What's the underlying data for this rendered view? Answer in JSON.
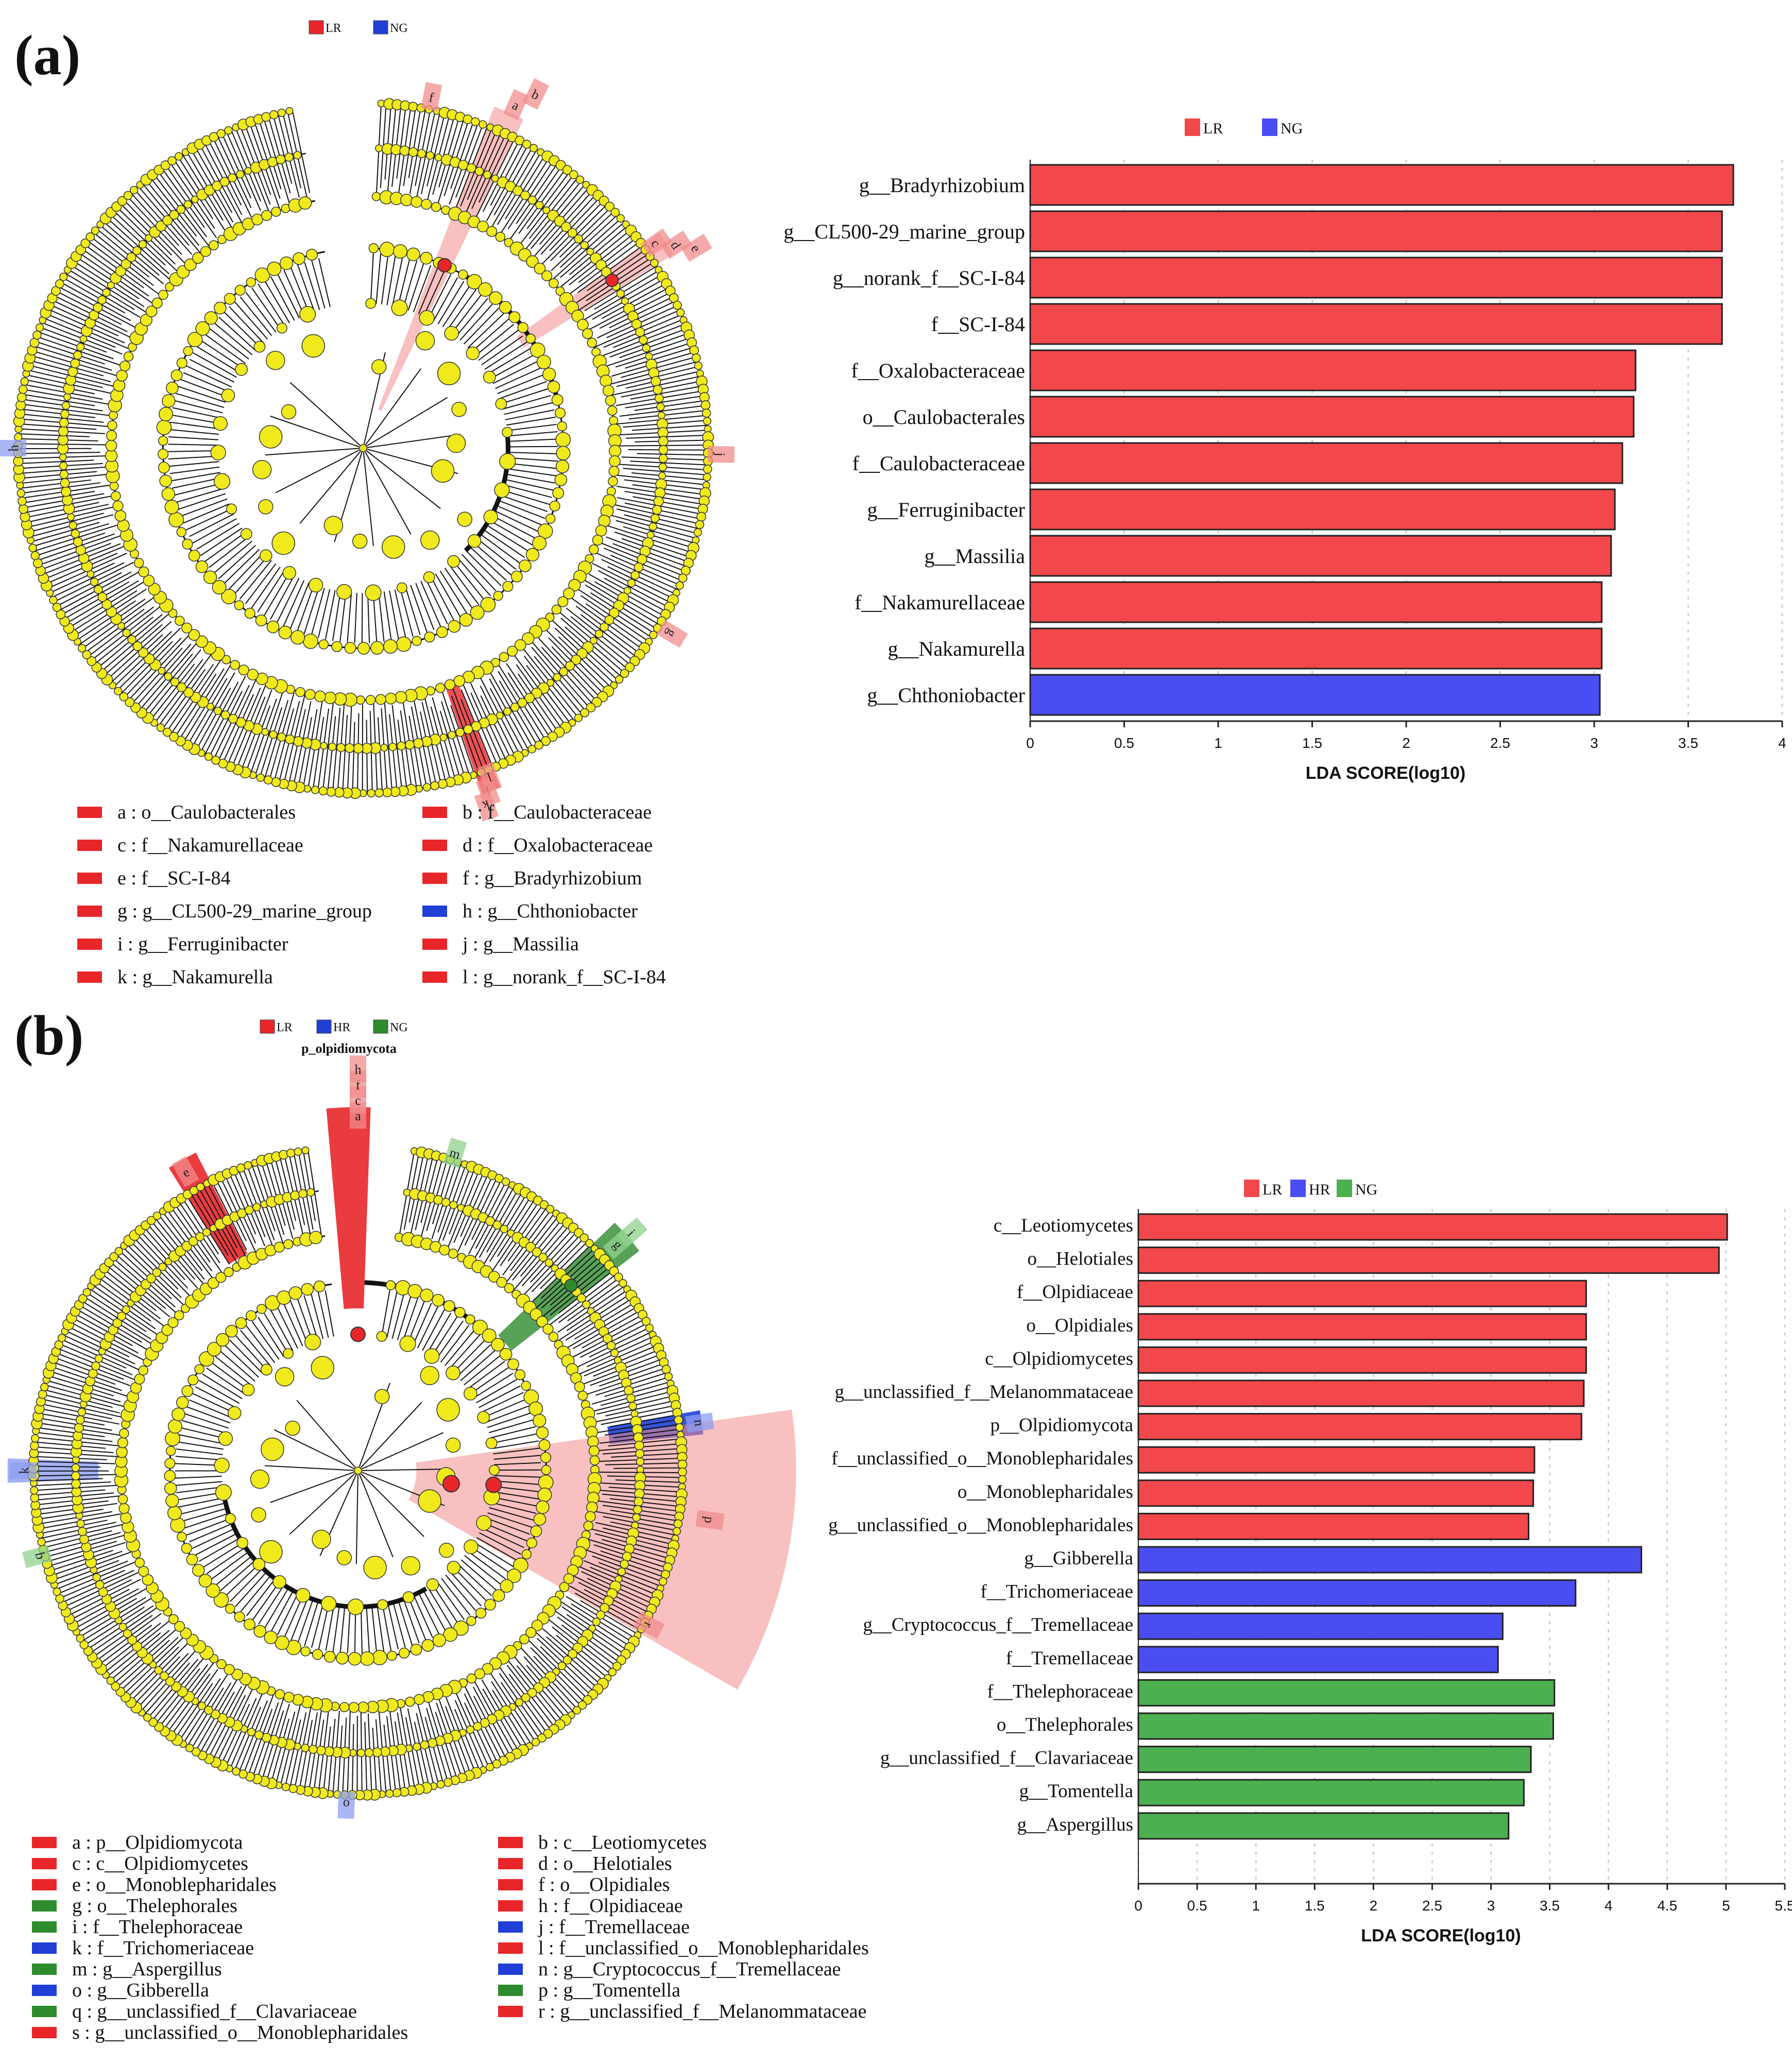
{
  "panel_a": {
    "label": "(a)",
    "cladogram_legend_header": [
      {
        "text": "LR",
        "color": "#e8262a"
      },
      {
        "text": "NG",
        "color": "#1f3fd6"
      }
    ],
    "cladogram_side_labels": [
      "a",
      "b",
      "c",
      "d",
      "e",
      "f",
      "g",
      "h",
      "i",
      "j",
      "k",
      "l"
    ],
    "clade_legend": [
      {
        "text": "a : o__Caulobacterales",
        "color": "#e8262a"
      },
      {
        "text": "b : f__Caulobacteraceae",
        "color": "#e8262a"
      },
      {
        "text": "c : f__Nakamurellaceae",
        "color": "#e8262a"
      },
      {
        "text": "d : f__Oxalobacteraceae",
        "color": "#e8262a"
      },
      {
        "text": "e : f__SC-I-84",
        "color": "#e8262a"
      },
      {
        "text": "f : g__Bradyrhizobium",
        "color": "#e8262a"
      },
      {
        "text": "g : g__CL500-29_marine_group",
        "color": "#e8262a"
      },
      {
        "text": "h : g__Chthoniobacter",
        "color": "#1f3fd6"
      },
      {
        "text": "i : g__Ferruginibacter",
        "color": "#e8262a"
      },
      {
        "text": "j : g__Massilia",
        "color": "#e8262a"
      },
      {
        "text": "k : g__Nakamurella",
        "color": "#e8262a"
      },
      {
        "text": "l : g__norank_f__SC-I-84",
        "color": "#e8262a"
      }
    ]
  },
  "panel_b": {
    "label": "(b)",
    "cladogram_legend_header": [
      {
        "text": "LR",
        "color": "#e8262a"
      },
      {
        "text": "HR",
        "color": "#1f3fd6"
      },
      {
        "text": "NG",
        "color": "#2e8b2e"
      }
    ],
    "cladogram_top_label": "p_olpidiomycota",
    "cladogram_side_labels": [
      "a",
      "b",
      "c",
      "d",
      "e",
      "f",
      "g",
      "h",
      "i",
      "j",
      "k",
      "l",
      "m",
      "n",
      "o",
      "p",
      "q",
      "r",
      "s"
    ],
    "clade_legend": [
      {
        "text": "a : p__Olpidiomycota",
        "color": "#e8262a"
      },
      {
        "text": "b : c__Leotiomycetes",
        "color": "#e8262a"
      },
      {
        "text": "c : c__Olpidiomycetes",
        "color": "#e8262a"
      },
      {
        "text": "d : o__Helotiales",
        "color": "#e8262a"
      },
      {
        "text": "e : o__Monoblepharidales",
        "color": "#e8262a"
      },
      {
        "text": "f : o__Olpidiales",
        "color": "#e8262a"
      },
      {
        "text": "g : o__Thelephorales",
        "color": "#2e8b2e"
      },
      {
        "text": "h : f__Olpidiaceae",
        "color": "#e8262a"
      },
      {
        "text": "i : f__Thelephoraceae",
        "color": "#2e8b2e"
      },
      {
        "text": "j : f__Tremellaceae",
        "color": "#1f3fd6"
      },
      {
        "text": "k : f__Trichomeriaceae",
        "color": "#1f3fd6"
      },
      {
        "text": "l : f__unclassified_o__Monoblepharidales",
        "color": "#e8262a"
      },
      {
        "text": "m : g__Aspergillus",
        "color": "#2e8b2e"
      },
      {
        "text": "n : g__Cryptococcus_f__Tremellaceae",
        "color": "#1f3fd6"
      },
      {
        "text": "o : g__Gibberella",
        "color": "#1f3fd6"
      },
      {
        "text": "p : g__Tomentella",
        "color": "#2e8b2e"
      },
      {
        "text": "q : g__unclassified_f__Clavariaceae",
        "color": "#2e8b2e"
      },
      {
        "text": "r : g__unclassified_f__Melanommataceae",
        "color": "#e8262a"
      },
      {
        "text": "s : g__unclassified_o__Monoblepharidales",
        "color": "#e8262a"
      }
    ]
  },
  "chart_data": [
    {
      "type": "bar",
      "orientation": "horizontal",
      "legend": [
        {
          "name": "LR",
          "color": "#f2484b"
        },
        {
          "name": "NG",
          "color": "#4a4ef2"
        }
      ],
      "categories": [
        "g__Bradyrhizobium",
        "g__CL500-29_marine_group",
        "g__norank_f__SC-I-84",
        "f__SC-I-84",
        "f__Oxalobacteraceae",
        "o__Caulobacterales",
        "f__Caulobacteraceae",
        "g__Ferruginibacter",
        "g__Massilia",
        "f__Nakamurellaceae",
        "g__Nakamurella",
        "g__Chthoniobacter"
      ],
      "values": [
        3.74,
        3.68,
        3.68,
        3.68,
        3.22,
        3.21,
        3.15,
        3.11,
        3.09,
        3.04,
        3.04,
        3.03
      ],
      "groups": [
        "LR",
        "LR",
        "LR",
        "LR",
        "LR",
        "LR",
        "LR",
        "LR",
        "LR",
        "LR",
        "LR",
        "NG"
      ],
      "xlabel": "LDA SCORE(log10)",
      "xlim": [
        0,
        4
      ],
      "xticks": [
        "0",
        "0.5",
        "1",
        "1.5",
        "2",
        "2.5",
        "3",
        "3.5",
        "4"
      ]
    },
    {
      "type": "bar",
      "orientation": "horizontal",
      "legend": [
        {
          "name": "LR",
          "color": "#f2484b"
        },
        {
          "name": "HR",
          "color": "#4a4ef2"
        },
        {
          "name": "NG",
          "color": "#4caf50"
        }
      ],
      "categories": [
        "c__Leotiomycetes",
        "o__Helotiales",
        "f__Olpidiaceae",
        "o__Olpidiales",
        "c__Olpidiomycetes",
        "g__unclassified_f__Melanommataceae",
        "p__Olpidiomycota",
        "f__unclassified_o__Monoblepharidales",
        "o__Monoblepharidales",
        "g__unclassified_o__Monoblepharidales",
        "g__Gibberella",
        "f__Trichomeriaceae",
        "g__Cryptococcus_f__Tremellaceae",
        "f__Tremellaceae",
        "f__Thelephoraceae",
        "o__Thelephorales",
        "g__unclassified_f__Clavariaceae",
        "g__Tomentella",
        "g__Aspergillus"
      ],
      "values": [
        5.01,
        4.94,
        3.81,
        3.81,
        3.81,
        3.79,
        3.77,
        3.37,
        3.36,
        3.32,
        4.28,
        3.72,
        3.1,
        3.06,
        3.54,
        3.53,
        3.34,
        3.28,
        3.15
      ],
      "groups": [
        "LR",
        "LR",
        "LR",
        "LR",
        "LR",
        "LR",
        "LR",
        "LR",
        "LR",
        "LR",
        "HR",
        "HR",
        "HR",
        "HR",
        "NG",
        "NG",
        "NG",
        "NG",
        "NG"
      ],
      "xlabel": "LDA SCORE(log10)",
      "xlim": [
        0,
        5.5
      ],
      "xticks": [
        "0",
        "0.5",
        "1",
        "1.5",
        "2",
        "2.5",
        "3",
        "3.5",
        "4",
        "4.5",
        "5",
        "5.5"
      ]
    }
  ]
}
